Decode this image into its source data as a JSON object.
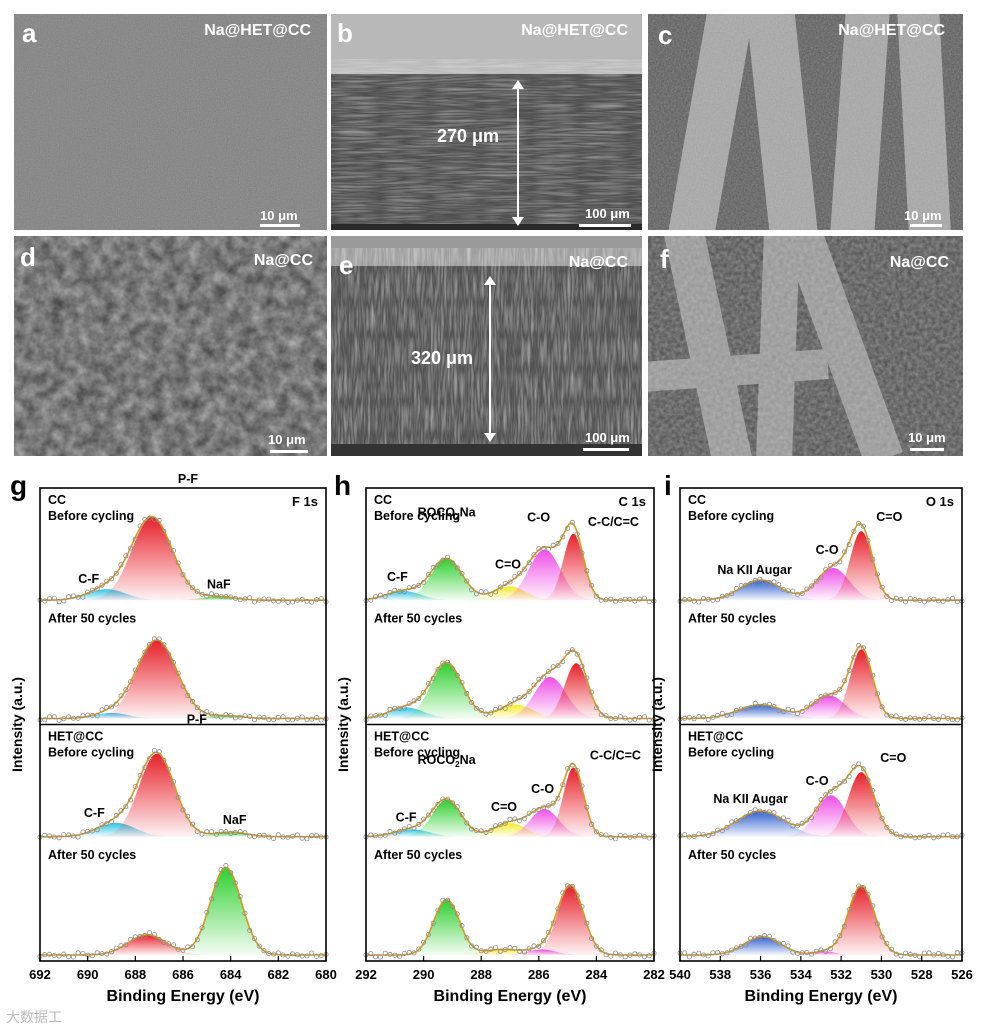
{
  "sem_panels": [
    {
      "id": "a",
      "letter": "a",
      "title": "Na@HET@CC",
      "scale": "10 μm",
      "thickness": ""
    },
    {
      "id": "b",
      "letter": "b",
      "title": "Na@HET@CC",
      "scale": "100 μm",
      "thickness": "270 μm"
    },
    {
      "id": "c",
      "letter": "c",
      "title": "Na@HET@CC",
      "scale": "10 μm",
      "thickness": ""
    },
    {
      "id": "d",
      "letter": "d",
      "title": "Na@CC",
      "scale": "10 μm",
      "thickness": ""
    },
    {
      "id": "e",
      "letter": "e",
      "title": "Na@CC",
      "scale": "100 μm",
      "thickness": "320 μm"
    },
    {
      "id": "f",
      "letter": "f",
      "title": "Na@CC",
      "scale": "10 μm",
      "thickness": ""
    }
  ],
  "chart_data": [
    {
      "panel": "g",
      "type": "line",
      "title": "F 1s",
      "xlabel": "Binding Energy (eV)",
      "ylabel": "Intensity (a.u.)",
      "xlim": [
        692,
        680
      ],
      "xticks": [
        "692",
        "690",
        "688",
        "686",
        "684",
        "682",
        "680"
      ],
      "subplots": [
        {
          "labels": [
            "CC",
            "Before cycling"
          ],
          "baseline": 0.0,
          "peaks": [
            {
              "name": "C-F",
              "center": 689.2,
              "width": 0.8,
              "height": 0.12,
              "color": "#2ec4e8"
            },
            {
              "name": "P-F",
              "center": 687.3,
              "width": 0.85,
              "height": 0.9,
              "color": "#e8202a"
            },
            {
              "name": "NaF",
              "center": 684.5,
              "width": 0.7,
              "height": 0.04,
              "color": "#2fd02f"
            }
          ]
        },
        {
          "labels": [
            "After 50 cycles"
          ],
          "baseline": 0.0,
          "peaks": [
            {
              "name": "",
              "center": 689.0,
              "width": 0.7,
              "height": 0.06,
              "color": "#2ec4e8"
            },
            {
              "name": "",
              "center": 687.1,
              "width": 0.85,
              "height": 0.85,
              "color": "#e8202a"
            },
            {
              "name": "",
              "center": 684.2,
              "width": 0.7,
              "height": 0.03,
              "color": "#2fd02f"
            }
          ]
        },
        {
          "labels": [
            "HET@CC",
            "Before cycling"
          ],
          "baseline": 0.0,
          "peaks": [
            {
              "name": "C-F",
              "center": 688.8,
              "width": 0.8,
              "height": 0.15,
              "color": "#2ec4e8"
            },
            {
              "name": "P-F",
              "center": 687.1,
              "width": 0.75,
              "height": 0.9,
              "color": "#e8202a"
            },
            {
              "name": "NaF",
              "center": 684.0,
              "width": 0.7,
              "height": 0.05,
              "color": "#2fd02f"
            }
          ]
        },
        {
          "labels": [
            "After 50 cycles"
          ],
          "baseline": 0.0,
          "peaks": [
            {
              "name": "",
              "center": 687.5,
              "width": 0.8,
              "height": 0.22,
              "color": "#e8202a"
            },
            {
              "name": "",
              "center": 684.2,
              "width": 0.65,
              "height": 0.95,
              "color": "#2fd02f"
            }
          ]
        }
      ]
    },
    {
      "panel": "h",
      "type": "line",
      "title": "C 1s",
      "xlabel": "Binding Energy (eV)",
      "ylabel": "Intensity (a.u.)",
      "xlim": [
        292,
        282
      ],
      "xticks": [
        "292",
        "290",
        "288",
        "286",
        "284",
        "282"
      ],
      "subplots": [
        {
          "labels": [
            "CC",
            "Before cycling"
          ],
          "baseline": 0.0,
          "peaks": [
            {
              "name": "C-F",
              "center": 290.7,
              "width": 0.6,
              "height": 0.1,
              "color": "#2ec4e8"
            },
            {
              "name": "ROCO2Na",
              "center": 289.2,
              "width": 0.55,
              "height": 0.45,
              "color": "#2fd02f"
            },
            {
              "name": "C=O",
              "center": 287.0,
              "width": 0.55,
              "height": 0.15,
              "color": "#f4ea2a"
            },
            {
              "name": "C-O",
              "center": 285.8,
              "width": 0.55,
              "height": 0.55,
              "color": "#ef4fe6"
            },
            {
              "name": "C-C/C=C",
              "center": 284.8,
              "width": 0.35,
              "height": 0.72,
              "color": "#e8202a"
            }
          ]
        },
        {
          "labels": [
            "After 50 cycles"
          ],
          "baseline": 0.0,
          "peaks": [
            {
              "name": "",
              "center": 290.6,
              "width": 0.6,
              "height": 0.12,
              "color": "#2ec4e8"
            },
            {
              "name": "",
              "center": 289.2,
              "width": 0.55,
              "height": 0.6,
              "color": "#2fd02f"
            },
            {
              "name": "",
              "center": 286.8,
              "width": 0.6,
              "height": 0.15,
              "color": "#f4ea2a"
            },
            {
              "name": "",
              "center": 285.6,
              "width": 0.55,
              "height": 0.45,
              "color": "#ef4fe6"
            },
            {
              "name": "",
              "center": 284.7,
              "width": 0.4,
              "height": 0.6,
              "color": "#e8202a"
            }
          ]
        },
        {
          "labels": [
            "HET@CC",
            "Before cycling"
          ],
          "baseline": 0.0,
          "peaks": [
            {
              "name": "C-F",
              "center": 290.4,
              "width": 0.6,
              "height": 0.08,
              "color": "#2ec4e8"
            },
            {
              "name": "ROCO2Na",
              "center": 289.2,
              "width": 0.5,
              "height": 0.4,
              "color": "#2fd02f"
            },
            {
              "name": "C=O",
              "center": 287.0,
              "width": 0.55,
              "height": 0.15,
              "color": "#f4ea2a"
            },
            {
              "name": "C-O",
              "center": 285.8,
              "width": 0.5,
              "height": 0.3,
              "color": "#ef4fe6"
            },
            {
              "name": "C-C/C=C",
              "center": 284.8,
              "width": 0.35,
              "height": 0.75,
              "color": "#e8202a"
            }
          ]
        },
        {
          "labels": [
            "After 50 cycles"
          ],
          "baseline": 0.0,
          "peaks": [
            {
              "name": "",
              "center": 289.2,
              "width": 0.45,
              "height": 0.6,
              "color": "#2fd02f"
            },
            {
              "name": "",
              "center": 287.3,
              "width": 0.6,
              "height": 0.06,
              "color": "#f4ea2a"
            },
            {
              "name": "",
              "center": 285.9,
              "width": 0.5,
              "height": 0.06,
              "color": "#ef4fe6"
            },
            {
              "name": "",
              "center": 284.9,
              "width": 0.45,
              "height": 0.75,
              "color": "#e8202a"
            }
          ]
        }
      ]
    },
    {
      "panel": "i",
      "type": "line",
      "title": "O 1s",
      "xlabel": "Binding Energy (eV)",
      "ylabel": "Intensity (a.u.)",
      "xlim": [
        540,
        526
      ],
      "xticks": [
        "540",
        "538",
        "536",
        "534",
        "532",
        "530",
        "528",
        "526"
      ],
      "subplots": [
        {
          "labels": [
            "CC",
            "Before cycling"
          ],
          "baseline": 0.0,
          "peaks": [
            {
              "name": "Na KII Augar",
              "center": 536.0,
              "width": 1.0,
              "height": 0.22,
              "color": "#2f5fd0"
            },
            {
              "name": "C-O",
              "center": 532.4,
              "width": 0.8,
              "height": 0.35,
              "color": "#ef4fe6"
            },
            {
              "name": "C=O",
              "center": 531.0,
              "width": 0.55,
              "height": 0.75,
              "color": "#e8202a"
            }
          ]
        },
        {
          "labels": [
            "After 50 cycles"
          ],
          "baseline": 0.0,
          "peaks": [
            {
              "name": "",
              "center": 536.0,
              "width": 1.1,
              "height": 0.15,
              "color": "#2f5fd0"
            },
            {
              "name": "",
              "center": 532.6,
              "width": 0.8,
              "height": 0.25,
              "color": "#ef4fe6"
            },
            {
              "name": "",
              "center": 531.0,
              "width": 0.55,
              "height": 0.75,
              "color": "#e8202a"
            }
          ]
        },
        {
          "labels": [
            "HET@CC",
            "Before cycling"
          ],
          "baseline": 0.0,
          "peaks": [
            {
              "name": "Na KII Augar",
              "center": 536.0,
              "width": 1.2,
              "height": 0.28,
              "color": "#2f5fd0"
            },
            {
              "name": "C-O",
              "center": 532.5,
              "width": 0.75,
              "height": 0.45,
              "color": "#ef4fe6"
            },
            {
              "name": "C=O",
              "center": 531.0,
              "width": 0.65,
              "height": 0.7,
              "color": "#e8202a"
            }
          ]
        },
        {
          "labels": [
            "After 50 cycles"
          ],
          "baseline": 0.0,
          "peaks": [
            {
              "name": "",
              "center": 535.9,
              "width": 0.9,
              "height": 0.2,
              "color": "#2f5fd0"
            },
            {
              "name": "",
              "center": 532.8,
              "width": 0.5,
              "height": 0.04,
              "color": "#ef4fe6"
            },
            {
              "name": "",
              "center": 531.0,
              "width": 0.65,
              "height": 0.75,
              "color": "#e8202a"
            }
          ]
        }
      ]
    }
  ],
  "xps_letters": [
    "g",
    "h",
    "i"
  ],
  "watermark": "大数据工"
}
